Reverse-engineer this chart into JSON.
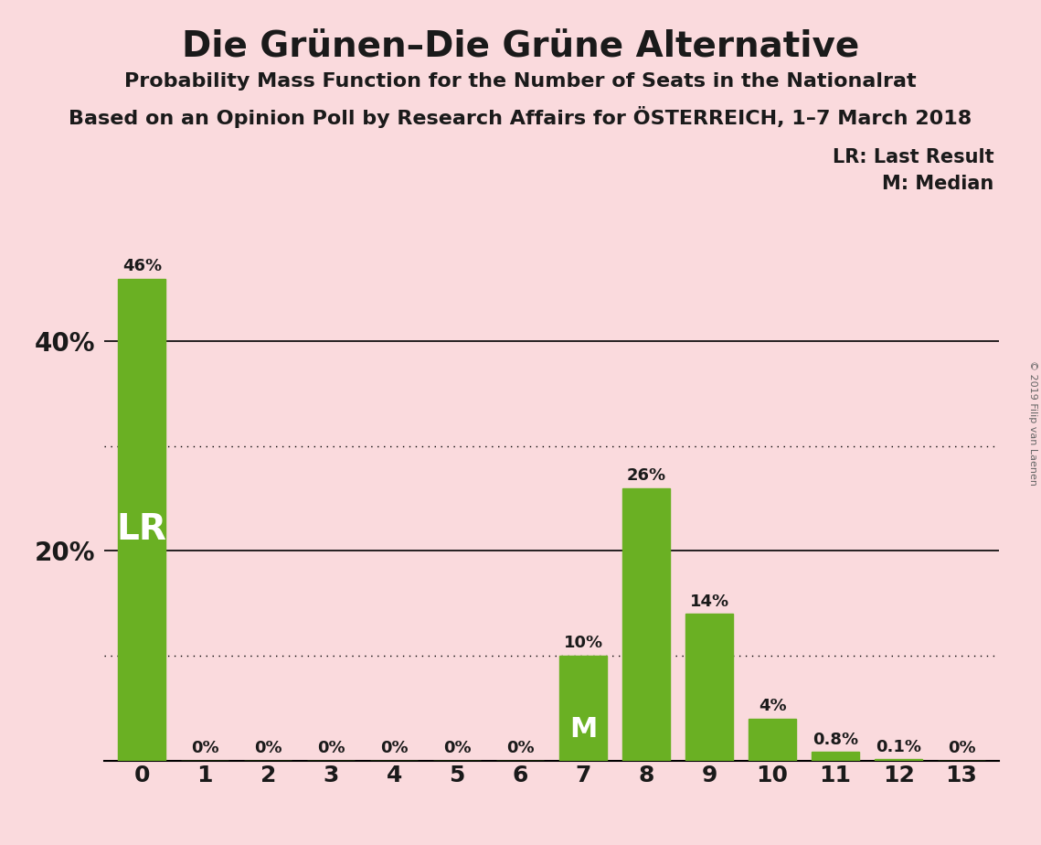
{
  "title": "Die Grünen–Die Grüne Alternative",
  "subtitle": "Probability Mass Function for the Number of Seats in the Nationalrat",
  "subsubtitle": "Based on an Opinion Poll by Research Affairs for ÖSTERREICH, 1–7 March 2018",
  "copyright": "© 2019 Filip van Laenen",
  "categories": [
    0,
    1,
    2,
    3,
    4,
    5,
    6,
    7,
    8,
    9,
    10,
    11,
    12,
    13
  ],
  "values": [
    0.46,
    0.0,
    0.0,
    0.0,
    0.0,
    0.0,
    0.0,
    0.1,
    0.26,
    0.14,
    0.04,
    0.008,
    0.001,
    0.0
  ],
  "labels": [
    "46%",
    "0%",
    "0%",
    "0%",
    "0%",
    "0%",
    "0%",
    "10%",
    "26%",
    "14%",
    "4%",
    "0.8%",
    "0.1%",
    "0%"
  ],
  "bar_color": "#6ab023",
  "background_color": "#fadadd",
  "text_color": "#1a1a1a",
  "lr_bar_index": 0,
  "median_bar_index": 7,
  "lr_label": "LR",
  "median_label": "M",
  "legend_lr": "LR: Last Result",
  "legend_m": "M: Median",
  "yticks": [
    0.0,
    0.2,
    0.4
  ],
  "ytick_labels": [
    "",
    "20%",
    "40%"
  ],
  "solid_gridlines": [
    0.2,
    0.4
  ],
  "dotted_gridlines": [
    0.1,
    0.3
  ],
  "ylim": [
    0,
    0.5
  ]
}
